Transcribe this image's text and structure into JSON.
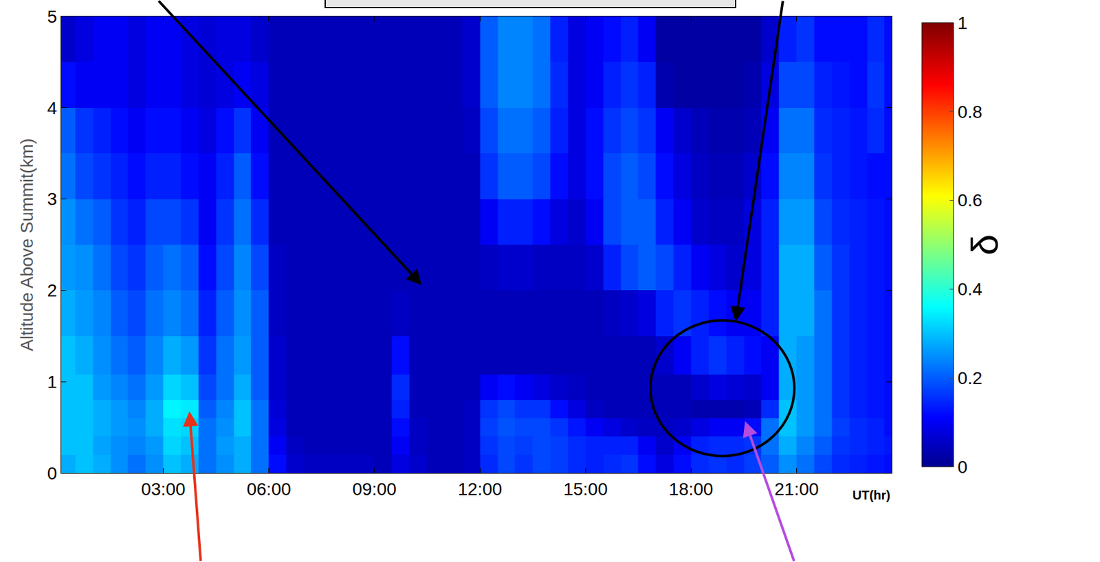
{
  "chart_data": {
    "type": "heatmap",
    "xlabel": "UT(hr)",
    "ylabel": "Altitude Above Summit(km)",
    "xlim": [
      0.1,
      23.7
    ],
    "ylim": [
      0,
      5
    ],
    "xticks": [
      {
        "value": 3,
        "label": "03:00"
      },
      {
        "value": 6,
        "label": "06:00"
      },
      {
        "value": 9,
        "label": "09:00"
      },
      {
        "value": 12,
        "label": "12:00"
      },
      {
        "value": 15,
        "label": "15:00"
      },
      {
        "value": 18,
        "label": "18:00"
      },
      {
        "value": 21,
        "label": "21:00"
      }
    ],
    "yticks": [
      0,
      1,
      2,
      3,
      4,
      5
    ],
    "x": [
      0.25,
      0.75,
      1.25,
      1.75,
      2.25,
      2.75,
      3.25,
      3.75,
      4.25,
      4.75,
      5.25,
      5.75,
      6.25,
      6.75,
      7.25,
      7.75,
      8.25,
      8.75,
      9.25,
      9.75,
      10.25,
      10.75,
      11.25,
      11.75,
      12.25,
      12.75,
      13.25,
      13.75,
      14.25,
      14.75,
      15.25,
      15.75,
      16.25,
      16.75,
      17.25,
      17.75,
      18.25,
      18.75,
      19.25,
      19.75,
      20.25,
      20.75,
      21.25,
      21.75,
      22.25,
      22.75,
      23.25,
      23.75
    ],
    "y": [
      0.1,
      0.3,
      0.5,
      0.7,
      0.9,
      1.25,
      1.75,
      2.25,
      2.75,
      3.25,
      3.75,
      4.25,
      4.75
    ],
    "cells": [
      [
        0.28,
        0.3,
        0.28,
        0.25,
        0.22,
        0.25,
        0.3,
        0.28,
        0.22,
        0.25,
        0.28,
        0.22,
        0.12,
        0.06,
        0.05,
        0.05,
        0.05,
        0.05,
        0.04,
        0.08,
        0.06,
        0.04,
        0.04,
        0.05,
        0.15,
        0.18,
        0.16,
        0.18,
        0.17,
        0.15,
        0.14,
        0.15,
        0.16,
        0.12,
        0.08,
        0.12,
        0.15,
        0.16,
        0.15,
        0.17,
        0.2,
        0.25,
        0.22,
        0.18,
        0.15,
        0.14,
        0.13,
        0.12
      ],
      [
        0.3,
        0.3,
        0.27,
        0.25,
        0.24,
        0.26,
        0.32,
        0.3,
        0.22,
        0.26,
        0.28,
        0.22,
        0.1,
        0.05,
        0.04,
        0.04,
        0.04,
        0.04,
        0.04,
        0.1,
        0.05,
        0.04,
        0.04,
        0.05,
        0.16,
        0.18,
        0.17,
        0.18,
        0.17,
        0.15,
        0.14,
        0.14,
        0.14,
        0.1,
        0.06,
        0.1,
        0.14,
        0.15,
        0.15,
        0.16,
        0.22,
        0.28,
        0.24,
        0.2,
        0.16,
        0.15,
        0.14,
        0.13
      ],
      [
        0.3,
        0.3,
        0.28,
        0.26,
        0.25,
        0.28,
        0.33,
        0.32,
        0.22,
        0.25,
        0.3,
        0.22,
        0.08,
        0.04,
        0.04,
        0.04,
        0.04,
        0.04,
        0.04,
        0.12,
        0.05,
        0.04,
        0.04,
        0.05,
        0.17,
        0.19,
        0.18,
        0.18,
        0.16,
        0.13,
        0.1,
        0.08,
        0.06,
        0.05,
        0.05,
        0.06,
        0.08,
        0.1,
        0.1,
        0.12,
        0.22,
        0.3,
        0.26,
        0.22,
        0.17,
        0.15,
        0.14,
        0.12
      ],
      [
        0.3,
        0.3,
        0.28,
        0.26,
        0.24,
        0.28,
        0.35,
        0.34,
        0.2,
        0.24,
        0.3,
        0.22,
        0.07,
        0.04,
        0.04,
        0.04,
        0.04,
        0.04,
        0.04,
        0.14,
        0.04,
        0.04,
        0.04,
        0.05,
        0.16,
        0.18,
        0.16,
        0.16,
        0.12,
        0.08,
        0.05,
        0.04,
        0.04,
        0.04,
        0.04,
        0.04,
        0.03,
        0.03,
        0.03,
        0.04,
        0.15,
        0.3,
        0.26,
        0.22,
        0.16,
        0.14,
        0.13,
        0.12
      ],
      [
        0.3,
        0.3,
        0.26,
        0.24,
        0.22,
        0.26,
        0.32,
        0.3,
        0.18,
        0.22,
        0.28,
        0.2,
        0.06,
        0.04,
        0.04,
        0.04,
        0.04,
        0.04,
        0.04,
        0.15,
        0.04,
        0.04,
        0.04,
        0.04,
        0.1,
        0.12,
        0.1,
        0.08,
        0.06,
        0.05,
        0.04,
        0.04,
        0.04,
        0.04,
        0.04,
        0.04,
        0.06,
        0.08,
        0.07,
        0.06,
        0.1,
        0.28,
        0.26,
        0.22,
        0.16,
        0.14,
        0.13,
        0.12
      ],
      [
        0.3,
        0.28,
        0.25,
        0.22,
        0.2,
        0.24,
        0.28,
        0.26,
        0.16,
        0.22,
        0.26,
        0.2,
        0.06,
        0.04,
        0.04,
        0.04,
        0.04,
        0.04,
        0.04,
        0.12,
        0.04,
        0.04,
        0.04,
        0.04,
        0.04,
        0.04,
        0.04,
        0.04,
        0.04,
        0.04,
        0.04,
        0.04,
        0.04,
        0.04,
        0.06,
        0.1,
        0.14,
        0.16,
        0.14,
        0.12,
        0.1,
        0.28,
        0.26,
        0.22,
        0.16,
        0.14,
        0.13,
        0.12
      ],
      [
        0.28,
        0.26,
        0.24,
        0.2,
        0.18,
        0.22,
        0.24,
        0.22,
        0.14,
        0.2,
        0.25,
        0.2,
        0.05,
        0.04,
        0.04,
        0.04,
        0.04,
        0.04,
        0.04,
        0.05,
        0.04,
        0.04,
        0.04,
        0.04,
        0.04,
        0.04,
        0.04,
        0.04,
        0.04,
        0.04,
        0.04,
        0.05,
        0.06,
        0.08,
        0.14,
        0.16,
        0.14,
        0.12,
        0.1,
        0.1,
        0.14,
        0.28,
        0.28,
        0.22,
        0.16,
        0.14,
        0.13,
        0.12
      ],
      [
        0.26,
        0.25,
        0.22,
        0.18,
        0.16,
        0.2,
        0.22,
        0.2,
        0.12,
        0.18,
        0.24,
        0.18,
        0.05,
        0.04,
        0.04,
        0.04,
        0.04,
        0.04,
        0.04,
        0.04,
        0.04,
        0.04,
        0.04,
        0.04,
        0.05,
        0.06,
        0.06,
        0.05,
        0.05,
        0.05,
        0.06,
        0.14,
        0.18,
        0.2,
        0.18,
        0.14,
        0.1,
        0.08,
        0.06,
        0.08,
        0.14,
        0.28,
        0.28,
        0.2,
        0.16,
        0.14,
        0.13,
        0.12
      ],
      [
        0.25,
        0.22,
        0.2,
        0.16,
        0.14,
        0.18,
        0.18,
        0.16,
        0.1,
        0.16,
        0.22,
        0.15,
        0.04,
        0.04,
        0.04,
        0.04,
        0.04,
        0.04,
        0.04,
        0.04,
        0.04,
        0.04,
        0.04,
        0.04,
        0.1,
        0.14,
        0.14,
        0.12,
        0.08,
        0.06,
        0.1,
        0.18,
        0.2,
        0.2,
        0.14,
        0.1,
        0.06,
        0.05,
        0.05,
        0.08,
        0.14,
        0.26,
        0.26,
        0.18,
        0.15,
        0.14,
        0.13,
        0.12
      ],
      [
        0.22,
        0.18,
        0.16,
        0.14,
        0.12,
        0.14,
        0.14,
        0.12,
        0.1,
        0.14,
        0.2,
        0.12,
        0.04,
        0.04,
        0.04,
        0.04,
        0.04,
        0.04,
        0.04,
        0.04,
        0.04,
        0.04,
        0.04,
        0.04,
        0.16,
        0.2,
        0.2,
        0.18,
        0.12,
        0.08,
        0.12,
        0.18,
        0.2,
        0.18,
        0.12,
        0.08,
        0.05,
        0.04,
        0.04,
        0.06,
        0.12,
        0.24,
        0.24,
        0.16,
        0.14,
        0.13,
        0.12,
        0.12
      ],
      [
        0.2,
        0.16,
        0.14,
        0.12,
        0.1,
        0.12,
        0.12,
        0.1,
        0.08,
        0.12,
        0.16,
        0.1,
        0.04,
        0.04,
        0.04,
        0.04,
        0.04,
        0.04,
        0.04,
        0.04,
        0.04,
        0.04,
        0.04,
        0.05,
        0.18,
        0.22,
        0.22,
        0.2,
        0.14,
        0.08,
        0.12,
        0.16,
        0.18,
        0.16,
        0.1,
        0.06,
        0.04,
        0.03,
        0.03,
        0.04,
        0.1,
        0.22,
        0.22,
        0.15,
        0.14,
        0.13,
        0.15,
        0.12
      ],
      [
        0.12,
        0.1,
        0.1,
        0.1,
        0.08,
        0.1,
        0.1,
        0.08,
        0.07,
        0.08,
        0.1,
        0.08,
        0.04,
        0.04,
        0.04,
        0.04,
        0.04,
        0.04,
        0.04,
        0.04,
        0.04,
        0.04,
        0.04,
        0.06,
        0.2,
        0.24,
        0.24,
        0.22,
        0.15,
        0.08,
        0.1,
        0.14,
        0.16,
        0.14,
        0.03,
        0.02,
        0.02,
        0.02,
        0.02,
        0.03,
        0.08,
        0.18,
        0.18,
        0.14,
        0.13,
        0.12,
        0.16,
        0.12
      ],
      [
        0.06,
        0.08,
        0.1,
        0.1,
        0.08,
        0.1,
        0.1,
        0.08,
        0.07,
        0.08,
        0.08,
        0.06,
        0.04,
        0.04,
        0.04,
        0.04,
        0.04,
        0.04,
        0.04,
        0.04,
        0.04,
        0.04,
        0.04,
        0.06,
        0.2,
        0.24,
        0.24,
        0.22,
        0.14,
        0.08,
        0.1,
        0.12,
        0.14,
        0.1,
        0.02,
        0.02,
        0.02,
        0.02,
        0.02,
        0.02,
        0.06,
        0.14,
        0.16,
        0.12,
        0.12,
        0.12,
        0.15,
        0.12
      ]
    ],
    "colorbar": {
      "title": "δ",
      "range": [
        0,
        1
      ],
      "ticks": [
        0,
        0.2,
        0.4,
        0.6,
        0.8,
        1
      ]
    }
  }
}
